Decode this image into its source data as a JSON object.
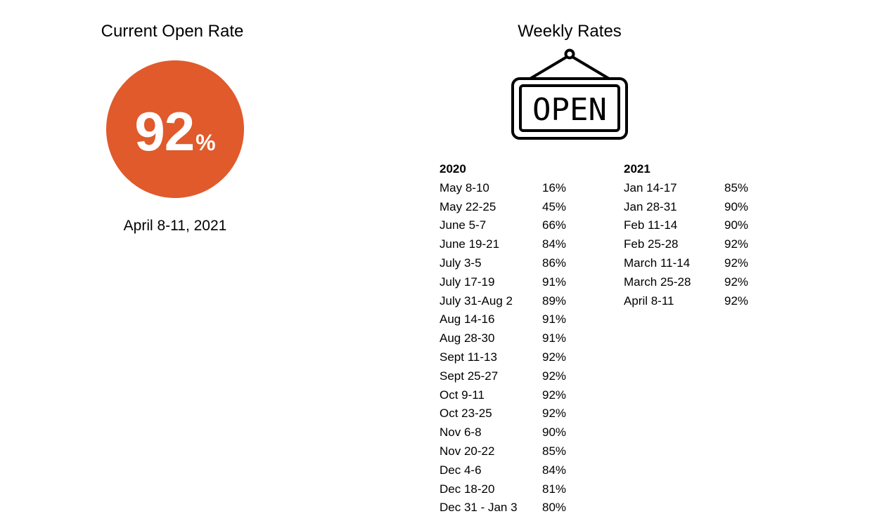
{
  "current": {
    "title": "Current Open Rate",
    "value": "92",
    "unit": "%",
    "date": "April 8-11, 2021",
    "circle_color": "#E05A2B"
  },
  "weekly": {
    "title": "Weekly Rates",
    "icon": "open-sign-icon",
    "icon_text": "OPEN",
    "years": [
      {
        "year": "2020",
        "rows": [
          {
            "date": "May 8-10",
            "rate": "16%"
          },
          {
            "date": "May 22-25",
            "rate": "45%"
          },
          {
            "date": "June 5-7",
            "rate": "66%"
          },
          {
            "date": "June 19-21",
            "rate": "84%"
          },
          {
            "date": "July 3-5",
            "rate": "86%"
          },
          {
            "date": "July 17-19",
            "rate": "91%"
          },
          {
            "date": "July 31-Aug 2",
            "rate": "89%"
          },
          {
            "date": "Aug 14-16",
            "rate": "91%"
          },
          {
            "date": "Aug 28-30",
            "rate": "91%"
          },
          {
            "date": "Sept 11-13",
            "rate": "92%"
          },
          {
            "date": "Sept 25-27",
            "rate": "92%"
          },
          {
            "date": "Oct 9-11",
            "rate": "92%"
          },
          {
            "date": "Oct 23-25",
            "rate": "92%"
          },
          {
            "date": "Nov 6-8",
            "rate": "90%"
          },
          {
            "date": "Nov 20-22",
            "rate": "85%"
          },
          {
            "date": "Dec 4-6",
            "rate": "84%"
          },
          {
            "date": "Dec 18-20",
            "rate": "81%"
          },
          {
            "date": "Dec 31 - Jan 3",
            "rate": "80%"
          }
        ]
      },
      {
        "year": "2021",
        "rows": [
          {
            "date": "Jan 14-17",
            "rate": "85%"
          },
          {
            "date": "Jan 28-31",
            "rate": "90%"
          },
          {
            "date": "Feb 11-14",
            "rate": "90%"
          },
          {
            "date": "Feb 25-28",
            "rate": "92%"
          },
          {
            "date": "March 11-14",
            "rate": "92%"
          },
          {
            "date": "March 25-28",
            "rate": "92%"
          },
          {
            "date": "April 8-11",
            "rate": "92%"
          }
        ]
      }
    ]
  }
}
